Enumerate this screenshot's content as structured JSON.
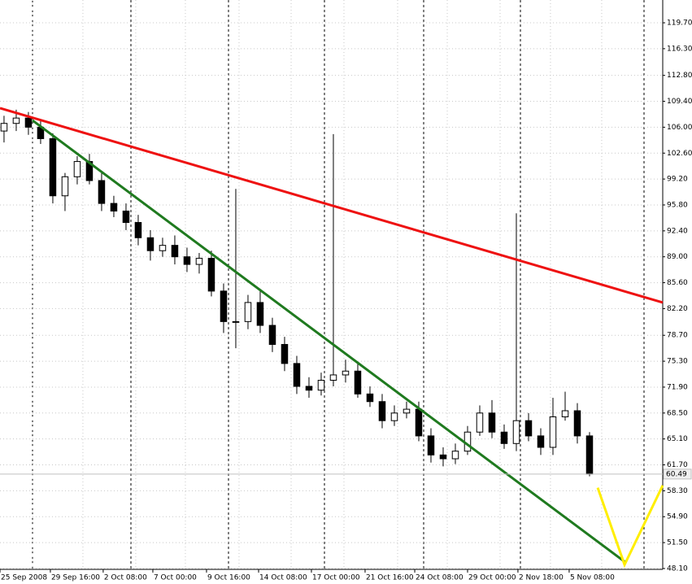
{
  "chart_data": {
    "type": "candlestick",
    "xlim": [
      -0.33,
      54
    ],
    "ylim": [
      47.99,
      122.69
    ],
    "yticks": [
      {
        "value": 119.7,
        "label": "119.70"
      },
      {
        "value": 116.3,
        "label": "116.30"
      },
      {
        "value": 112.8,
        "label": "112.80"
      },
      {
        "value": 109.4,
        "label": "109.40"
      },
      {
        "value": 106,
        "label": "106.00"
      },
      {
        "value": 102.6,
        "label": "102.60"
      },
      {
        "value": 99.2,
        "label": "99.20"
      },
      {
        "value": 95.8,
        "label": "95.80"
      },
      {
        "value": 92.4,
        "label": "92.40"
      },
      {
        "value": 89,
        "label": "89.00"
      },
      {
        "value": 85.6,
        "label": "85.60"
      },
      {
        "value": 82.2,
        "label": "82.20"
      },
      {
        "value": 78.7,
        "label": "78.70"
      },
      {
        "value": 75.3,
        "label": "75.30"
      },
      {
        "value": 71.9,
        "label": "71.90"
      },
      {
        "value": 68.5,
        "label": "68.50"
      },
      {
        "value": 65.1,
        "label": "65.10"
      },
      {
        "value": 61.7,
        "label": "61.70"
      },
      {
        "value": 58.3,
        "label": "58.30"
      },
      {
        "value": 54.9,
        "label": "54.90"
      },
      {
        "value": 51.5,
        "label": "51.50"
      },
      {
        "value": 48.1,
        "label": "48.10"
      }
    ],
    "xticks": [
      {
        "value": -0.33,
        "label": "25 Sep 2008"
      },
      {
        "value": 3.8,
        "label": "29 Sep 16:00"
      },
      {
        "value": 8.13,
        "label": "2 Oct 08:00"
      },
      {
        "value": 12.2,
        "label": "7 Oct 00:00"
      },
      {
        "value": 16.6,
        "label": "9 Oct 16:00"
      },
      {
        "value": 20.87,
        "label": "14 Oct 08:00"
      },
      {
        "value": 25.2,
        "label": "17 Oct 00:00"
      },
      {
        "value": 29.6,
        "label": "21 Oct 16:00"
      },
      {
        "value": 33.67,
        "label": "24 Oct 08:00"
      },
      {
        "value": 38,
        "label": "29 Oct 00:00"
      },
      {
        "value": 42.13,
        "label": "2 Nov 18:00"
      },
      {
        "value": 46.33,
        "label": "5 Nov 08:00"
      }
    ],
    "grid": true,
    "open": [
      105.5,
      106.5,
      107.2,
      106.0,
      104.5,
      97.0,
      99.5,
      101.5,
      99.0,
      96.0,
      95.0,
      93.5,
      91.5,
      89.8,
      90.5,
      89.0,
      88.0,
      88.8,
      84.5,
      80.5,
      80.5,
      83.0,
      80.0,
      77.5,
      75.0,
      72.0,
      71.5,
      72.8,
      73.5,
      74.0,
      71.0,
      70.0,
      67.5,
      68.5,
      69.0,
      65.5,
      63.0,
      62.5,
      63.5,
      66.0,
      68.5,
      66.0,
      64.5,
      67.5,
      65.5,
      64.0,
      68.0,
      68.8,
      65.5
    ],
    "high": [
      107.5,
      108.3,
      108.0,
      107.0,
      105.2,
      100.0,
      102.2,
      102.5,
      100.0,
      97.0,
      96.0,
      94.5,
      92.5,
      91.5,
      91.8,
      90.2,
      89.5,
      89.8,
      85.5,
      97.9,
      84.0,
      84.5,
      81.0,
      78.5,
      76.0,
      73.2,
      73.8,
      105.1,
      75.5,
      75.0,
      72.0,
      71.0,
      69.5,
      70.0,
      70.0,
      66.5,
      64.0,
      64.5,
      66.8,
      69.5,
      70.2,
      67.0,
      94.7,
      68.5,
      66.5,
      70.5,
      71.3,
      69.8,
      66.0
    ],
    "low": [
      104.0,
      105.5,
      105.0,
      103.8,
      96.0,
      95.0,
      98.5,
      98.5,
      95.0,
      94.2,
      92.5,
      90.5,
      88.5,
      89.0,
      88.0,
      87.0,
      86.8,
      83.8,
      79.0,
      77.0,
      79.5,
      79.0,
      76.5,
      74.0,
      71.0,
      70.5,
      70.8,
      72.0,
      72.5,
      70.5,
      69.3,
      66.5,
      66.8,
      67.8,
      64.8,
      62.0,
      61.5,
      61.8,
      63.0,
      65.5,
      65.2,
      63.8,
      63.5,
      64.8,
      63.0,
      63.0,
      67.5,
      64.5,
      60.2
    ],
    "close": [
      106.5,
      107.2,
      106.0,
      104.5,
      97.0,
      99.5,
      101.5,
      99.0,
      96.0,
      95.0,
      93.5,
      91.5,
      89.8,
      90.5,
      89.0,
      88.0,
      88.8,
      84.5,
      80.5,
      80.5,
      83.0,
      80.0,
      77.5,
      75.0,
      72.0,
      71.5,
      72.8,
      73.5,
      74.0,
      71.0,
      70.0,
      67.5,
      68.5,
      69.0,
      65.5,
      63.0,
      62.5,
      63.5,
      66.0,
      68.5,
      66.0,
      64.5,
      67.5,
      65.5,
      64.0,
      68.0,
      68.8,
      65.5,
      60.49
    ],
    "last_price": 60.49,
    "trendlines": [
      {
        "color": "#ee1111",
        "x": [
          -0.33,
          54
        ],
        "y": [
          108.5,
          83.0
        ]
      },
      {
        "color": "#1f7a1f",
        "x": [
          2.33,
          51
        ],
        "y": [
          106.9,
          48.85
        ]
      },
      {
        "color": "#ffee00",
        "x": [
          48.67,
          50.87,
          54
        ],
        "y": [
          58.7,
          48.6,
          59.0
        ]
      }
    ]
  }
}
